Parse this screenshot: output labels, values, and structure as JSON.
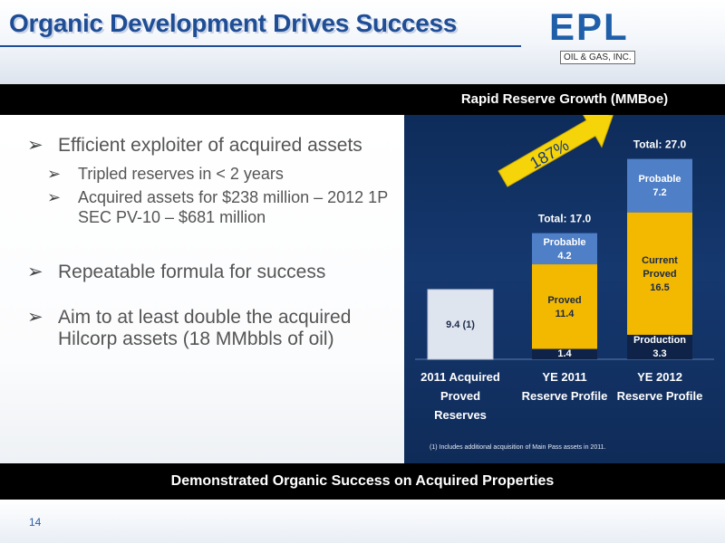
{
  "slide": {
    "title": "Organic Development Drives Success",
    "logo_text": "EPL",
    "logo_subtext": "OIL & GAS, INC.",
    "chart_header": "Rapid Reserve Growth (MMBoe)",
    "footer": "Demonstrated Organic Success on Acquired Properties",
    "page_number": "14",
    "footnote": "(1)  Includes additional acquisition of Main Pass assets in 2011."
  },
  "bullets": [
    {
      "level": 1,
      "marker": "➢",
      "text": "Efficient exploiter of acquired assets"
    },
    {
      "level": 2,
      "marker": "➢",
      "text": "Tripled reserves in < 2 years"
    },
    {
      "level": 2,
      "marker": "➢",
      "text": "Acquired assets for $238 million – 2012 1P SEC PV-10 – $681 million"
    },
    {
      "level": 1,
      "marker": "➢",
      "text": "Repeatable formula for success"
    },
    {
      "level": 1,
      "marker": "➢",
      "text": "Aim to at least double the acquired Hilcorp assets (18 MMbbls of oil)"
    }
  ],
  "colors": {
    "title": "#1f4e96",
    "chart_bg": "#15386f",
    "acquired": "#dfe5ef",
    "production": "#0f2348",
    "proved": "#f3b800",
    "probable": "#4f7fc6",
    "arrow": "#f5d40a"
  },
  "chart_data": {
    "type": "bar",
    "stacked": true,
    "title": "Rapid Reserve Growth (MMBoe)",
    "categories": [
      "2011 Acquired Proved Reserves",
      "YE 2011 Reserve Profile",
      "YE 2012 Reserve Profile"
    ],
    "category_lines": [
      [
        "2011 Acquired",
        "Proved",
        "Reserves"
      ],
      [
        "YE 2011",
        "Reserve Profile"
      ],
      [
        "YE 2012",
        "Reserve Profile"
      ]
    ],
    "series": [
      {
        "name": "Acquired",
        "values": [
          9.4,
          null,
          null
        ],
        "labels": [
          "9.4 (1)",
          "",
          ""
        ]
      },
      {
        "name": "Production",
        "values": [
          null,
          1.4,
          3.3
        ],
        "labels": [
          "",
          "Production|1.4",
          "Production|3.3"
        ]
      },
      {
        "name": "Proved",
        "values": [
          null,
          11.4,
          16.5
        ],
        "labels": [
          "",
          "Proved|11.4",
          "Current|Proved|16.5"
        ]
      },
      {
        "name": "Probable",
        "values": [
          null,
          4.2,
          7.2
        ],
        "labels": [
          "",
          "Probable|4.2",
          "Probable|7.2"
        ]
      }
    ],
    "totals": [
      null,
      "Total: 17.0",
      "Total: 27.0"
    ],
    "annotation": "187%",
    "ylim": [
      0,
      27
    ]
  }
}
